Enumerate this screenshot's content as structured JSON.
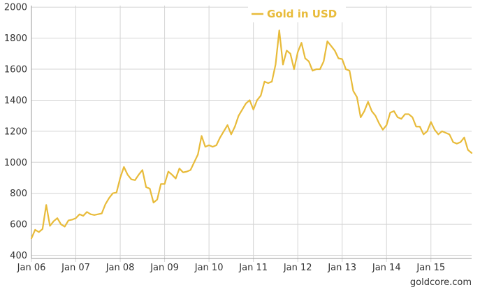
{
  "chart_data": {
    "type": "line",
    "title": "",
    "xlabel": "",
    "ylabel": "",
    "x_ticks": [
      "Jan 06",
      "Jan 07",
      "Jan 08",
      "Jan 09",
      "Jan 10",
      "Jan 11",
      "Jan 12",
      "Jan 13",
      "Jan 14",
      "Jan 15"
    ],
    "y_ticks": [
      400,
      600,
      800,
      1000,
      1200,
      1400,
      1600,
      1800,
      2000
    ],
    "ylim": [
      380,
      2010
    ],
    "xlim": [
      "2006-01",
      "2015-12"
    ],
    "grid": true,
    "legend_position": "top",
    "source_text": "goldcore.com",
    "series": [
      {
        "name": "Gold in USD",
        "color": "#e8bb3a",
        "x": [
          "2006-01",
          "2006-02",
          "2006-03",
          "2006-04",
          "2006-05",
          "2006-06",
          "2006-07",
          "2006-08",
          "2006-09",
          "2006-10",
          "2006-11",
          "2006-12",
          "2007-01",
          "2007-02",
          "2007-03",
          "2007-04",
          "2007-05",
          "2007-06",
          "2007-07",
          "2007-08",
          "2007-09",
          "2007-10",
          "2007-11",
          "2007-12",
          "2008-01",
          "2008-02",
          "2008-03",
          "2008-04",
          "2008-05",
          "2008-06",
          "2008-07",
          "2008-08",
          "2008-09",
          "2008-10",
          "2008-11",
          "2008-12",
          "2009-01",
          "2009-02",
          "2009-03",
          "2009-04",
          "2009-05",
          "2009-06",
          "2009-07",
          "2009-08",
          "2009-09",
          "2009-10",
          "2009-11",
          "2009-12",
          "2010-01",
          "2010-02",
          "2010-03",
          "2010-04",
          "2010-05",
          "2010-06",
          "2010-07",
          "2010-08",
          "2010-09",
          "2010-10",
          "2010-11",
          "2010-12",
          "2011-01",
          "2011-02",
          "2011-03",
          "2011-04",
          "2011-05",
          "2011-06",
          "2011-07",
          "2011-08",
          "2011-09",
          "2011-10",
          "2011-11",
          "2011-12",
          "2012-01",
          "2012-02",
          "2012-03",
          "2012-04",
          "2012-05",
          "2012-06",
          "2012-07",
          "2012-08",
          "2012-09",
          "2012-10",
          "2012-11",
          "2012-12",
          "2013-01",
          "2013-02",
          "2013-03",
          "2013-04",
          "2013-05",
          "2013-06",
          "2013-07",
          "2013-08",
          "2013-09",
          "2013-10",
          "2013-11",
          "2013-12",
          "2014-01",
          "2014-02",
          "2014-03",
          "2014-04",
          "2014-05",
          "2014-06",
          "2014-07",
          "2014-08",
          "2014-09",
          "2014-10",
          "2014-11",
          "2014-12",
          "2015-01",
          "2015-02",
          "2015-03",
          "2015-04",
          "2015-05",
          "2015-06",
          "2015-07",
          "2015-08",
          "2015-09",
          "2015-10",
          "2015-11",
          "2015-12"
        ],
        "values": [
          510,
          565,
          550,
          570,
          725,
          590,
          620,
          640,
          600,
          585,
          625,
          630,
          640,
          665,
          655,
          680,
          665,
          660,
          665,
          670,
          730,
          770,
          800,
          805,
          900,
          970,
          920,
          890,
          885,
          920,
          950,
          840,
          830,
          740,
          760,
          860,
          860,
          940,
          920,
          895,
          960,
          935,
          940,
          950,
          1000,
          1050,
          1170,
          1100,
          1110,
          1100,
          1110,
          1160,
          1200,
          1240,
          1180,
          1230,
          1300,
          1340,
          1380,
          1400,
          1340,
          1400,
          1430,
          1520,
          1510,
          1520,
          1630,
          1850,
          1630,
          1720,
          1700,
          1600,
          1710,
          1770,
          1670,
          1650,
          1590,
          1600,
          1600,
          1650,
          1780,
          1750,
          1720,
          1670,
          1665,
          1600,
          1590,
          1460,
          1420,
          1290,
          1330,
          1390,
          1330,
          1300,
          1250,
          1210,
          1240,
          1320,
          1330,
          1290,
          1280,
          1310,
          1310,
          1290,
          1230,
          1230,
          1180,
          1200,
          1260,
          1210,
          1180,
          1200,
          1190,
          1180,
          1130,
          1120,
          1130,
          1160,
          1080,
          1060
        ]
      }
    ]
  }
}
